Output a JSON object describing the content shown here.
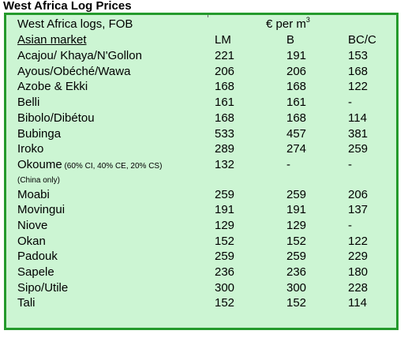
{
  "title": "West Africa Log Prices",
  "table": {
    "header_left": "West Africa logs, FOB",
    "header_unit": "€ per m",
    "header_unit_sup": "3",
    "market_label": "Asian market",
    "columns": [
      "LM",
      "B",
      "BC/C"
    ],
    "rows": [
      {
        "name": "Acajou/ Khaya/N'Gollon",
        "lm": "221",
        "b": "191",
        "bcc": "153"
      },
      {
        "name": "Ayous/Obéché/Wawa",
        "lm": "206",
        "b": "206",
        "bcc": "168"
      },
      {
        "name": "Azobe & Ekki",
        "lm": "168",
        "b": "168",
        "bcc": "122"
      },
      {
        "name": "Belli",
        "lm": "161",
        "b": "161",
        "bcc": "-"
      },
      {
        "name": "Bibolo/Dibétou",
        "lm": "168",
        "b": "168",
        "bcc": "114"
      },
      {
        "name": "Bubinga",
        "lm": "533",
        "b": "457",
        "bcc": "381"
      },
      {
        "name": "Iroko",
        "lm": "289",
        "b": "274",
        "bcc": "259"
      },
      {
        "name": "Okoume",
        "name_suffix": "(60% CI, 40% CE, 20% CS)",
        "note": "(China only)",
        "lm": "132",
        "b": "-",
        "bcc": "-"
      },
      {
        "name": "Moabi",
        "lm": "259",
        "b": "259",
        "bcc": "206"
      },
      {
        "name": "Movingui",
        "lm": "191",
        "b": "191",
        "bcc": "137"
      },
      {
        "name": "Niove",
        "lm": "129",
        "b": "129",
        "bcc": "-"
      },
      {
        "name": "Okan",
        "lm": "152",
        "b": "152",
        "bcc": "122"
      },
      {
        "name": "Padouk",
        "lm": "259",
        "b": "259",
        "bcc": "229"
      },
      {
        "name": "Sapele",
        "lm": "236",
        "b": "236",
        "bcc": "180"
      },
      {
        "name": "Sipo/Utile",
        "lm": "300",
        "b": "300",
        "bcc": "228"
      },
      {
        "name": "Tali",
        "lm": "152",
        "b": "152",
        "bcc": "114"
      }
    ]
  }
}
